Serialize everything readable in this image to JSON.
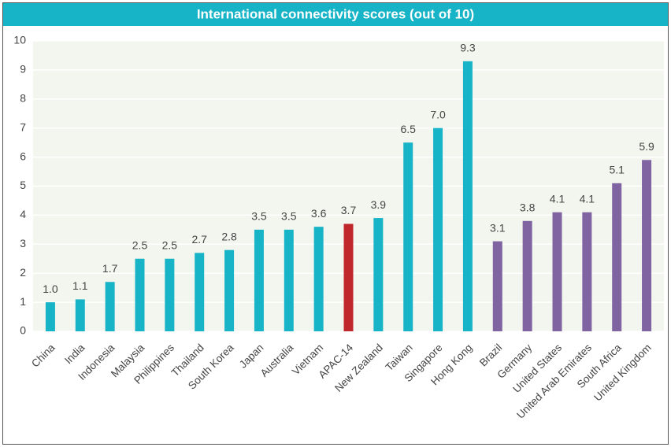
{
  "chart_data": {
    "type": "bar",
    "title": "International connectivity scores (out of 10)",
    "categories": [
      "China",
      "India",
      "Indonesia",
      "Malaysia",
      "Philippines",
      "Thailand",
      "South Korea",
      "Japan",
      "Australia",
      "Vietnam",
      "APAC-14",
      "New Zealand",
      "Taiwan",
      "Singapore",
      "Hong Kong",
      "Brazil",
      "Germany",
      "United States",
      "United Arab Emirates",
      "South Africa",
      "United Kingdom"
    ],
    "values": [
      1.0,
      1.1,
      1.7,
      2.5,
      2.5,
      2.7,
      2.8,
      3.5,
      3.5,
      3.6,
      3.7,
      3.9,
      6.5,
      7.0,
      9.3,
      3.1,
      3.8,
      4.1,
      4.1,
      5.1,
      5.9
    ],
    "value_labels": [
      "1.0",
      "1.1",
      "1.7",
      "2.5",
      "2.5",
      "2.7",
      "2.8",
      "3.5",
      "3.5",
      "3.6",
      "3.7",
      "3.9",
      "6.5",
      "7.0",
      "9.3",
      "3.1",
      "3.8",
      "4.1",
      "4.1",
      "5.1",
      "5.9"
    ],
    "colors": [
      "#17b3c6",
      "#17b3c6",
      "#17b3c6",
      "#17b3c6",
      "#17b3c6",
      "#17b3c6",
      "#17b3c6",
      "#17b3c6",
      "#17b3c6",
      "#17b3c6",
      "#c0272d",
      "#17b3c6",
      "#17b3c6",
      "#17b3c6",
      "#17b3c6",
      "#8064a2",
      "#8064a2",
      "#8064a2",
      "#8064a2",
      "#8064a2",
      "#8064a2"
    ],
    "ylim": [
      0,
      10
    ],
    "yticks": [
      0,
      1,
      2,
      3,
      4,
      5,
      6,
      7,
      8,
      9,
      10
    ],
    "grid": true
  }
}
